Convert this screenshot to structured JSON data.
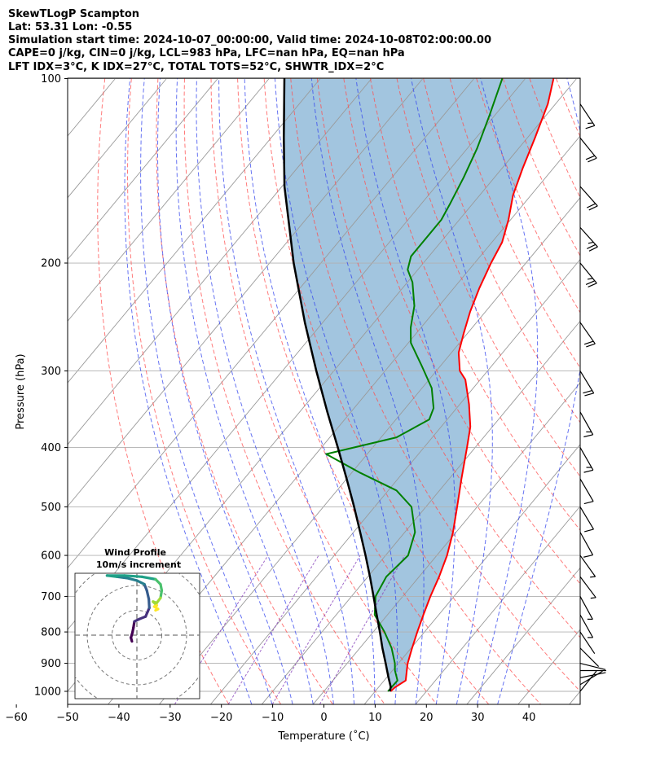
{
  "figure": {
    "title_lines": [
      "SkewTLogP Scampton",
      "Lat: 53.31   Lon: -0.55",
      "Simulation start time: 2024-10-07_00:00:00, Valid time: 2024-10-08T02:00:00.00",
      "CAPE=0 j/kg, CIN=0 j/kg, LCL=983 hPa, LFC=nan hPa, EQ=nan hPa",
      "LFT IDX=3°C, K IDX=27°C, TOTAL TOTS=52°C, SHWTR_IDX=2°C"
    ]
  },
  "chart_data": [
    {
      "type": "line",
      "chart_kind": "skew-t log-p",
      "xlabel": "Temperature (˚C)",
      "ylabel": "Pressure (hPa)",
      "xlim": [
        -60,
        40
      ],
      "ylim": [
        1040,
        100
      ],
      "y_scale": "log",
      "x_ticks": [
        -60,
        -50,
        -40,
        -30,
        -20,
        -10,
        0,
        10,
        20,
        30,
        40
      ],
      "x_tick_labels": [
        "−60",
        "−50",
        "−40",
        "−30",
        "−20",
        "−10",
        "0",
        "10",
        "20",
        "30",
        "40"
      ],
      "y_ticks": [
        1000,
        900,
        800,
        700,
        600,
        500,
        400,
        300,
        200,
        100
      ],
      "y_tick_labels": [
        "1000",
        "900",
        "800",
        "700",
        "600",
        "500",
        "400",
        "300",
        "200",
        "100"
      ],
      "grid": true,
      "colors": {
        "temperature": "#ff0000",
        "dewpoint": "#008000",
        "parcel": "#000000",
        "cape_fill": "#a2c5df",
        "dry_adiabat": "#ff4d4d",
        "moist_adiabat": "#3344ee",
        "mixing_ratio": "#8844bb",
        "isotherm": "#9a9a9a"
      },
      "series": [
        {
          "id": "temperature",
          "points": [
            {
              "p": 1000,
              "t": 13.0
            },
            {
              "p": 985,
              "t": 13.2
            },
            {
              "p": 960,
              "t": 14.2
            },
            {
              "p": 925,
              "t": 12.8
            },
            {
              "p": 900,
              "t": 11.8
            },
            {
              "p": 850,
              "t": 10.2
            },
            {
              "p": 800,
              "t": 8.6
            },
            {
              "p": 750,
              "t": 7.0
            },
            {
              "p": 700,
              "t": 5.4
            },
            {
              "p": 650,
              "t": 3.9
            },
            {
              "p": 600,
              "t": 2.0
            },
            {
              "p": 550,
              "t": -0.6
            },
            {
              "p": 500,
              "t": -3.9
            },
            {
              "p": 450,
              "t": -7.6
            },
            {
              "p": 400,
              "t": -11.6
            },
            {
              "p": 370,
              "t": -14.3
            },
            {
              "p": 340,
              "t": -18.2
            },
            {
              "p": 310,
              "t": -22.9
            },
            {
              "p": 300,
              "t": -25.4
            },
            {
              "p": 280,
              "t": -28.6
            },
            {
              "p": 260,
              "t": -30.8
            },
            {
              "p": 240,
              "t": -33.0
            },
            {
              "p": 220,
              "t": -35.0
            },
            {
              "p": 200,
              "t": -36.8
            },
            {
              "p": 185,
              "t": -38.0
            },
            {
              "p": 170,
              "t": -40.4
            },
            {
              "p": 155,
              "t": -43.5
            },
            {
              "p": 140,
              "t": -46.0
            },
            {
              "p": 125,
              "t": -48.5
            },
            {
              "p": 110,
              "t": -51.5
            },
            {
              "p": 100,
              "t": -54.5
            }
          ]
        },
        {
          "id": "dewpoint",
          "points": [
            {
              "p": 1000,
              "t": 12.5
            },
            {
              "p": 960,
              "t": 12.6
            },
            {
              "p": 925,
              "t": 10.5
            },
            {
              "p": 900,
              "t": 9.3
            },
            {
              "p": 850,
              "t": 6.2
            },
            {
              "p": 800,
              "t": 2.2
            },
            {
              "p": 750,
              "t": -2.5
            },
            {
              "p": 700,
              "t": -5.3
            },
            {
              "p": 650,
              "t": -6.4
            },
            {
              "p": 600,
              "t": -5.6
            },
            {
              "p": 550,
              "t": -8.0
            },
            {
              "p": 500,
              "t": -12.8
            },
            {
              "p": 470,
              "t": -18.4
            },
            {
              "p": 440,
              "t": -28.3
            },
            {
              "p": 410,
              "t": -38.0
            },
            {
              "p": 385,
              "t": -27.0
            },
            {
              "p": 360,
              "t": -23.5
            },
            {
              "p": 345,
              "t": -24.5
            },
            {
              "p": 320,
              "t": -28.1
            },
            {
              "p": 295,
              "t": -33.5
            },
            {
              "p": 270,
              "t": -39.5
            },
            {
              "p": 255,
              "t": -42.0
            },
            {
              "p": 235,
              "t": -44.8
            },
            {
              "p": 215,
              "t": -49.0
            },
            {
              "p": 205,
              "t": -52.0
            },
            {
              "p": 195,
              "t": -53.5
            },
            {
              "p": 180,
              "t": -53.5
            },
            {
              "p": 170,
              "t": -53.5
            },
            {
              "p": 160,
              "t": -54.4
            },
            {
              "p": 145,
              "t": -56.0
            },
            {
              "p": 130,
              "t": -58.1
            },
            {
              "p": 115,
              "t": -61.0
            },
            {
              "p": 100,
              "t": -64.5
            }
          ]
        },
        {
          "id": "parcel",
          "points": [
            {
              "p": 1000,
              "t": 12.9
            },
            {
              "p": 983,
              "t": 12.3
            },
            {
              "p": 950,
              "t": 10.4
            },
            {
              "p": 900,
              "t": 7.5
            },
            {
              "p": 850,
              "t": 4.4
            },
            {
              "p": 800,
              "t": 1.3
            },
            {
              "p": 750,
              "t": -2.1
            },
            {
              "p": 700,
              "t": -5.7
            },
            {
              "p": 650,
              "t": -9.6
            },
            {
              "p": 600,
              "t": -13.9
            },
            {
              "p": 550,
              "t": -18.7
            },
            {
              "p": 500,
              "t": -24.0
            },
            {
              "p": 450,
              "t": -30.0
            },
            {
              "p": 400,
              "t": -36.8
            },
            {
              "p": 350,
              "t": -44.6
            },
            {
              "p": 300,
              "t": -53.4
            },
            {
              "p": 250,
              "t": -63.5
            },
            {
              "p": 200,
              "t": -75.3
            },
            {
              "p": 150,
              "t": -89.5
            },
            {
              "p": 125,
              "t": -97.5
            },
            {
              "p": 100,
              "t": -107.0
            }
          ]
        }
      ],
      "wind_barbs": [
        {
          "p": 1000,
          "u": -2.0,
          "v": -2.5
        },
        {
          "p": 975,
          "u": -2.5,
          "v": -1.5
        },
        {
          "p": 950,
          "u": -2.5,
          "v": -0.5
        },
        {
          "p": 925,
          "u": -2.3,
          "v": 0.0
        },
        {
          "p": 900,
          "u": -2.0,
          "v": 0.5
        },
        {
          "p": 850,
          "u": -1.5,
          "v": 1.5
        },
        {
          "p": 800,
          "u": -2.0,
          "v": 3.0
        },
        {
          "p": 750,
          "u": -2.5,
          "v": 4.5
        },
        {
          "p": 700,
          "u": -3.0,
          "v": 5.5
        },
        {
          "p": 650,
          "u": -4.5,
          "v": 6.0
        },
        {
          "p": 600,
          "u": -5.0,
          "v": 7.0
        },
        {
          "p": 550,
          "u": -5.0,
          "v": 9.0
        },
        {
          "p": 500,
          "u": -6.0,
          "v": 10.0
        },
        {
          "p": 450,
          "u": -7.0,
          "v": 12.0
        },
        {
          "p": 400,
          "u": -8.0,
          "v": 14.0
        },
        {
          "p": 350,
          "u": -9.0,
          "v": 16.0
        },
        {
          "p": 300,
          "u": -11.0,
          "v": 18.0
        },
        {
          "p": 250,
          "u": -14.0,
          "v": 20.0
        },
        {
          "p": 200,
          "u": -18.0,
          "v": 22.0
        },
        {
          "p": 175,
          "u": -18.0,
          "v": 20.0
        },
        {
          "p": 150,
          "u": -16.0,
          "v": 18.0
        },
        {
          "p": 125,
          "u": -13.0,
          "v": 16.0
        },
        {
          "p": 110,
          "u": -10.0,
          "v": 15.0
        }
      ]
    },
    {
      "type": "scatter",
      "chart_kind": "hodograph",
      "title": "Wind Profile",
      "subtitle": "10m/s increment",
      "ring_step": 10,
      "range": [
        -25,
        25
      ],
      "points": [
        {
          "u": -2.0,
          "v": -2.5
        },
        {
          "u": -2.4,
          "v": -1.0
        },
        {
          "u": -1.8,
          "v": 1.0
        },
        {
          "u": -1.4,
          "v": 3.0
        },
        {
          "u": -1.0,
          "v": 5.5
        },
        {
          "u": 1.0,
          "v": 6.5
        },
        {
          "u": 3.5,
          "v": 7.5
        },
        {
          "u": 5.0,
          "v": 11.0
        },
        {
          "u": 4.8,
          "v": 14.5
        },
        {
          "u": 4.0,
          "v": 18.0
        },
        {
          "u": 3.0,
          "v": 20.5
        },
        {
          "u": 0.0,
          "v": 22.0
        },
        {
          "u": -4.0,
          "v": 23.0
        },
        {
          "u": -8.0,
          "v": 23.5
        },
        {
          "u": -12.0,
          "v": 24.0
        },
        {
          "u": -5.0,
          "v": 24.0
        },
        {
          "u": 2.0,
          "v": 23.5
        },
        {
          "u": 7.5,
          "v": 22.5
        },
        {
          "u": 9.5,
          "v": 20.5
        },
        {
          "u": 10.0,
          "v": 18.0
        },
        {
          "u": 9.5,
          "v": 15.0
        },
        {
          "u": 8.0,
          "v": 13.0
        },
        {
          "u": 6.5,
          "v": 13.5
        },
        {
          "u": 8.0,
          "v": 12.0
        },
        {
          "u": 7.0,
          "v": 11.5
        },
        {
          "u": 8.5,
          "v": 10.5
        },
        {
          "u": 7.5,
          "v": 10.0
        }
      ]
    }
  ]
}
